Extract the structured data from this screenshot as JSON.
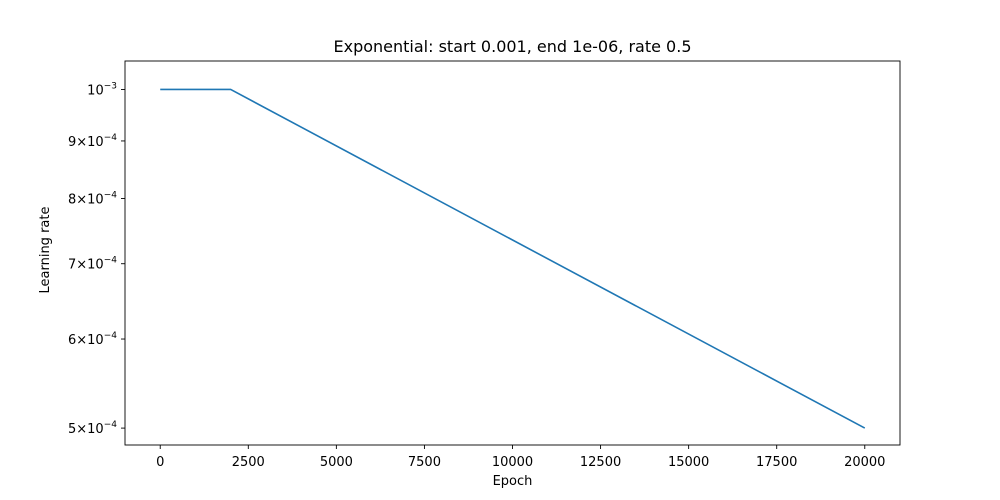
{
  "chart_data": {
    "type": "line",
    "title": "Exponential: start 0.001, end 1e-06, rate 0.5",
    "xlabel": "Epoch",
    "ylabel": "Learning rate",
    "x_scale": "linear",
    "y_scale": "log",
    "xlim": [
      -1000,
      21000
    ],
    "ylim": [
      0.000483,
      0.00106
    ],
    "grid": false,
    "legend": "none",
    "x_ticks": [
      {
        "value": 0,
        "label": "0"
      },
      {
        "value": 2500,
        "label": "2500"
      },
      {
        "value": 5000,
        "label": "5000"
      },
      {
        "value": 7500,
        "label": "7500"
      },
      {
        "value": 10000,
        "label": "10000"
      },
      {
        "value": 12500,
        "label": "12500"
      },
      {
        "value": 15000,
        "label": "15000"
      },
      {
        "value": 17500,
        "label": "17500"
      },
      {
        "value": 20000,
        "label": "20000"
      }
    ],
    "y_ticks": [
      {
        "value": 0.001,
        "mantissa": "",
        "exponent": "−3"
      },
      {
        "value": 0.0009,
        "mantissa": "9",
        "exponent": "−4"
      },
      {
        "value": 0.0008,
        "mantissa": "8",
        "exponent": "−4"
      },
      {
        "value": 0.0007,
        "mantissa": "7",
        "exponent": "−4"
      },
      {
        "value": 0.0006,
        "mantissa": "6",
        "exponent": "−4"
      },
      {
        "value": 0.0005,
        "mantissa": "5",
        "exponent": "−4"
      }
    ],
    "series": [
      {
        "color": "#1f77b4",
        "x": [
          0,
          2000,
          20000
        ],
        "y": [
          0.001,
          0.001,
          0.0005
        ]
      }
    ]
  }
}
